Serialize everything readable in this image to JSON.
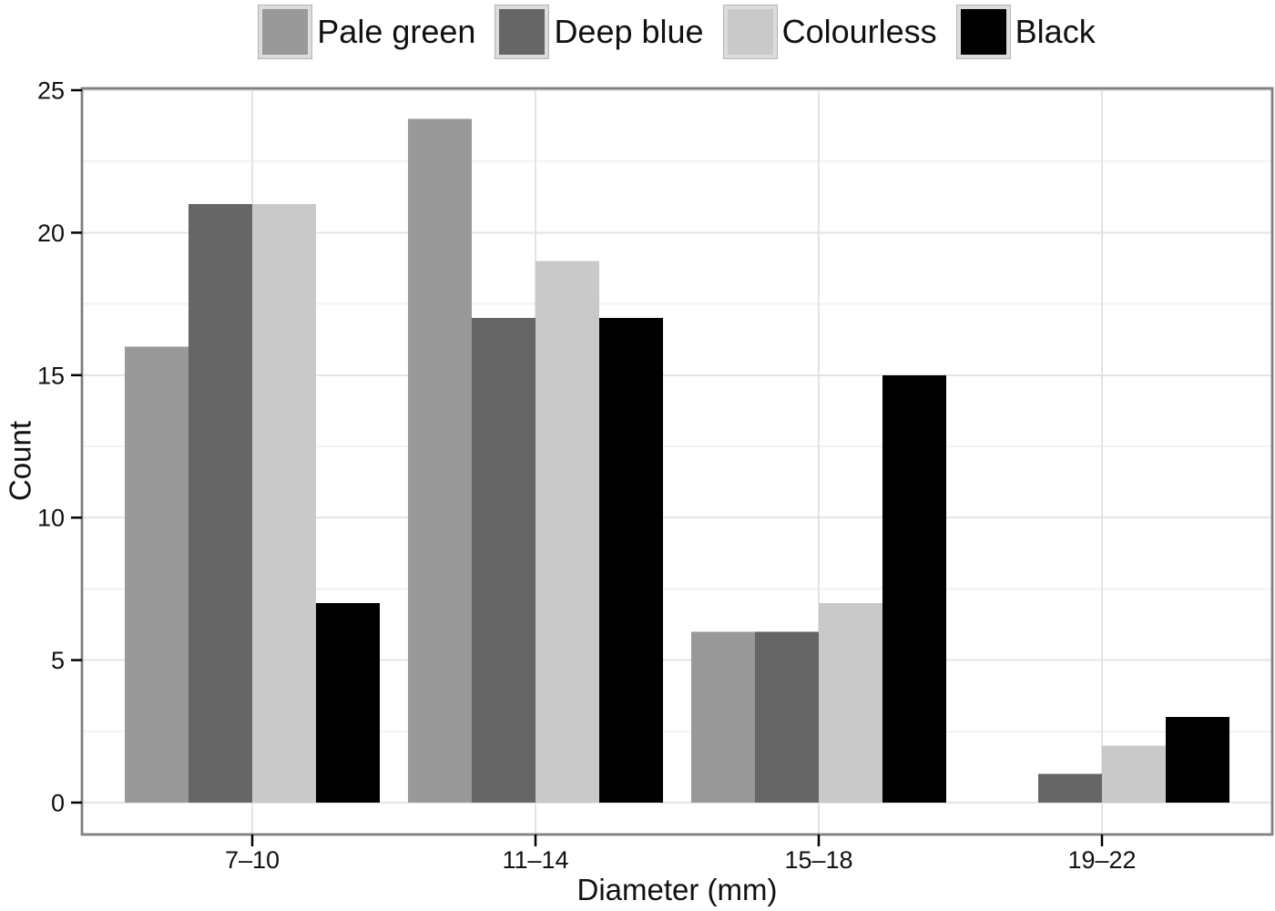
{
  "chart_data": {
    "type": "bar",
    "title": "",
    "categories": [
      "7–10",
      "11–14",
      "15–18",
      "19–22"
    ],
    "series": [
      {
        "name": "Pale green",
        "color": "#999999",
        "values": [
          16,
          24,
          6,
          0
        ]
      },
      {
        "name": "Deep blue",
        "color": "#666666",
        "values": [
          21,
          17,
          6,
          1
        ]
      },
      {
        "name": "Colourless",
        "color": "#c9c9c9",
        "values": [
          21,
          19,
          7,
          2
        ]
      },
      {
        "name": "Black",
        "color": "#000000",
        "values": [
          7,
          17,
          15,
          3
        ]
      }
    ],
    "xlabel": "Diameter (mm)",
    "ylabel": "Count",
    "ylim": [
      0,
      25
    ],
    "y_ticks": [
      0,
      5,
      10,
      15,
      20,
      25
    ],
    "y_minor_step": 2.5,
    "grid": "on",
    "legend_position": "top",
    "bar_group_width_fraction": 0.9
  },
  "colors": {
    "grid_major": "#e4e4e4",
    "grid_minor": "#f2f2f2",
    "panel_border": "#808080",
    "axis_tick": "#000000",
    "text": "#111111",
    "legend_swatch_border": "#dcdcdc",
    "background": "#ffffff"
  }
}
